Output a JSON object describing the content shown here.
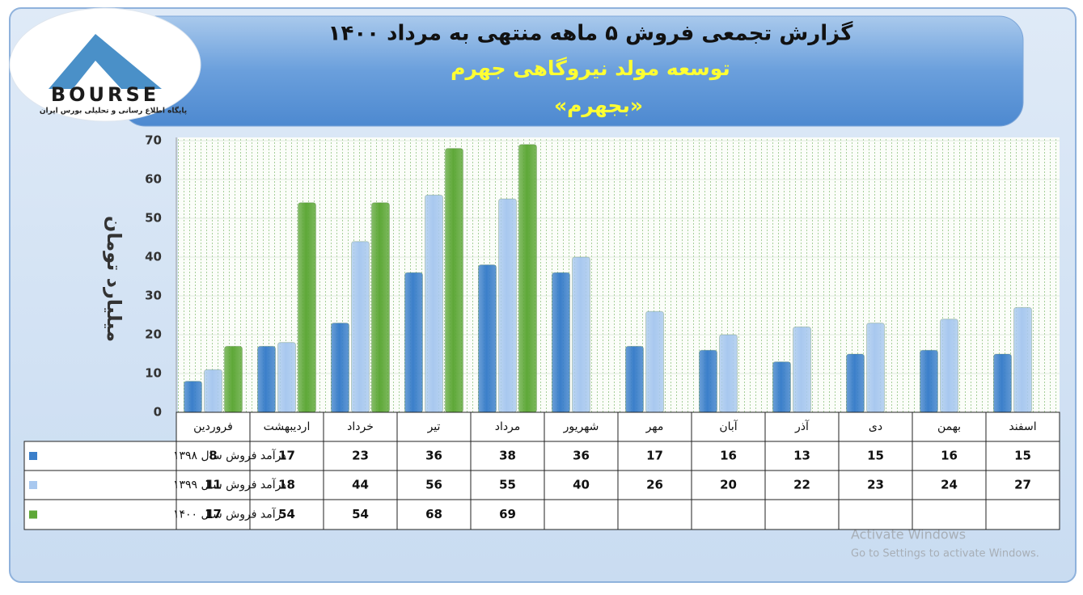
{
  "chart_data": {
    "type": "bar",
    "title": "گزارش تجمعی فروش ۵ ماهه منتهی به مرداد ۱۴۰۰",
    "subtitle": "توسعه مولد نیروگاهی جهرم",
    "symbol": "«بجهرم»",
    "y_label": "میلیارد تومان",
    "categories": [
      "فروردین",
      "اردیبهشت",
      "خرداد",
      "تیر",
      "مرداد",
      "شهریور",
      "مهر",
      "آبان",
      "آذر",
      "دی",
      "بهمن",
      "اسفند"
    ],
    "series": [
      {
        "name": "درآمد فروش سال ۱۳۹۸",
        "color": "#3b7fca",
        "values": [
          8,
          17,
          23,
          36,
          38,
          36,
          17,
          16,
          13,
          15,
          16,
          15
        ]
      },
      {
        "name": "درآمد فروش سال ۱۳۹۹",
        "color": "#a8c8ef",
        "values": [
          11,
          18,
          44,
          56,
          55,
          40,
          26,
          20,
          22,
          23,
          24,
          27
        ]
      },
      {
        "name": "درآمد فروش سال ۱۴۰۰",
        "color": "#5ea838",
        "values": [
          17,
          54,
          54,
          68,
          69,
          null,
          null,
          null,
          null,
          null,
          null,
          null
        ]
      }
    ],
    "ylim": [
      0,
      70
    ],
    "yticks": [
      0,
      10,
      20,
      30,
      40,
      50,
      60,
      70
    ],
    "grid": true
  },
  "logo": {
    "name": "BOURSE",
    "caption": "پایگاه اطلاع رسانی و تحلیلی بورس ایران"
  },
  "watermark": {
    "title": "Activate Windows",
    "text": "Go to Settings to activate Windows."
  }
}
